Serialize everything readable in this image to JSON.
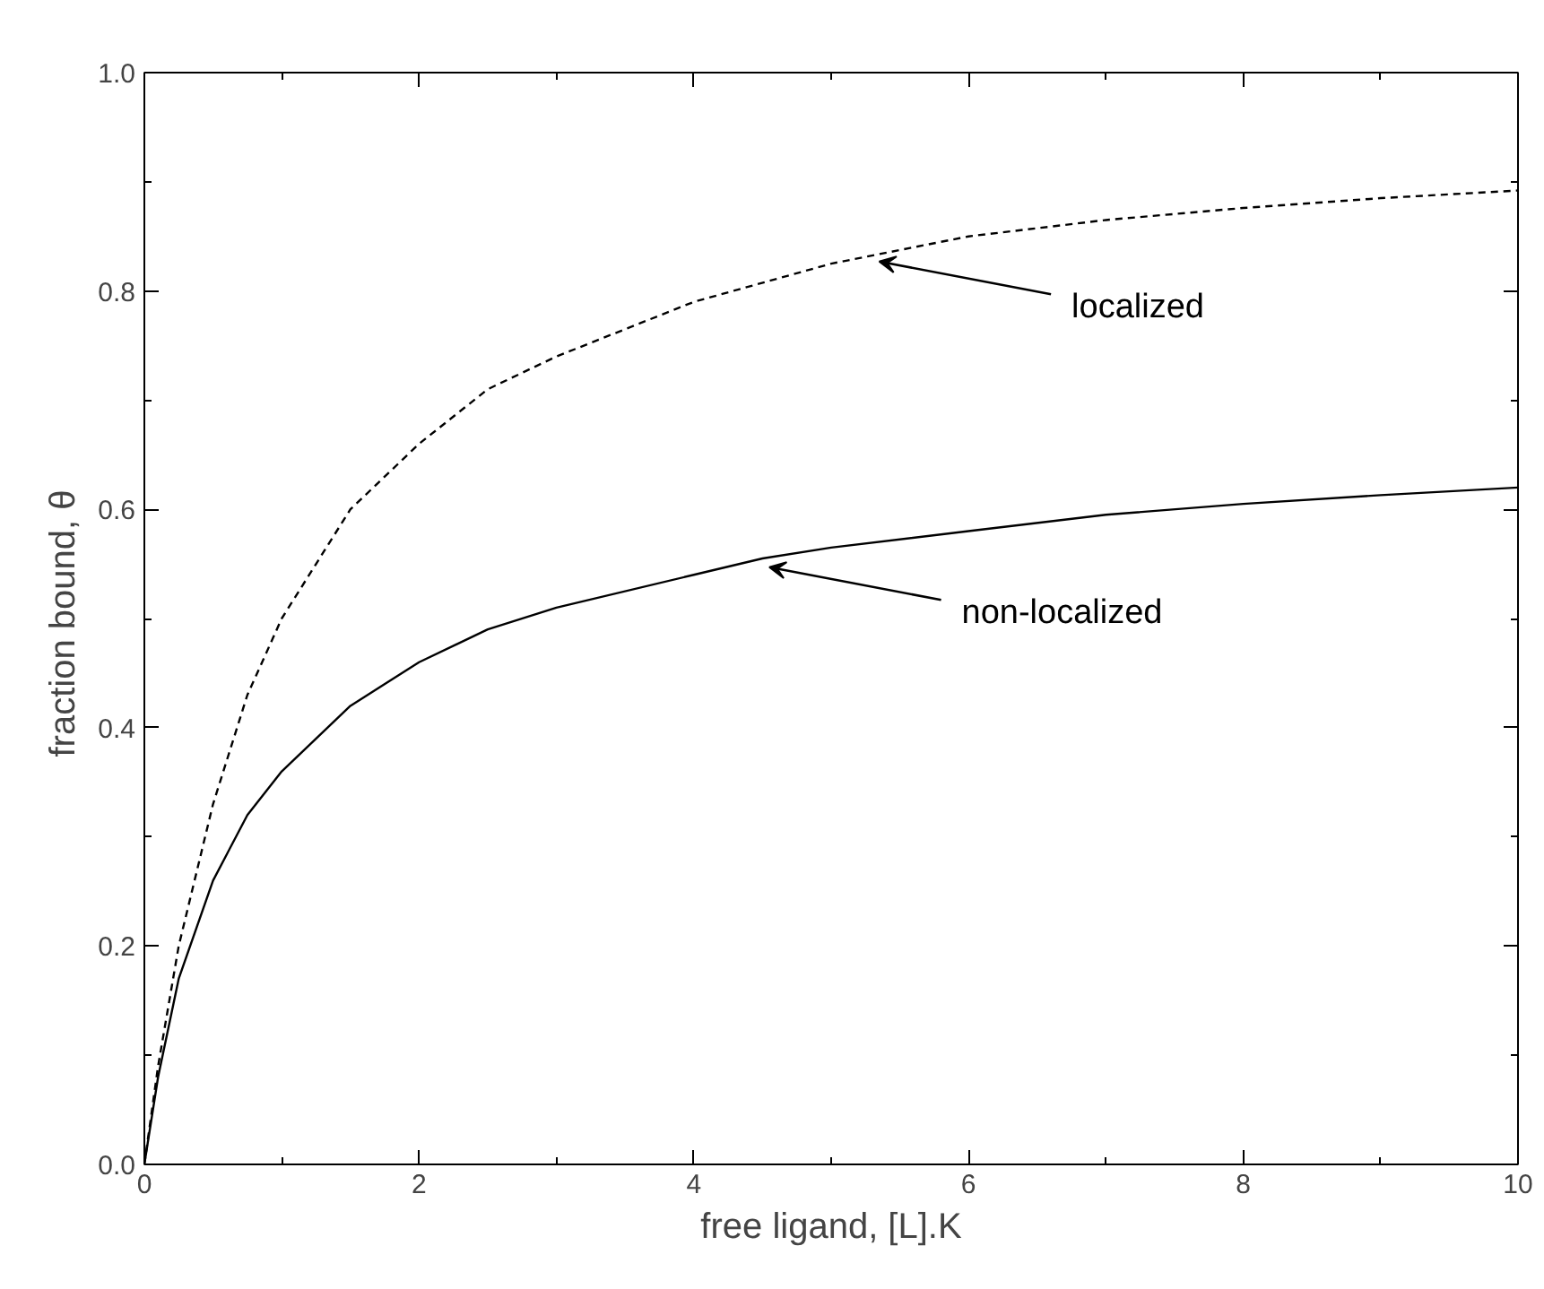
{
  "chart_data": {
    "type": "line",
    "xlabel": "free ligand, [L].K",
    "ylabel": "fraction bound,  θ",
    "xlim": [
      0,
      10
    ],
    "ylim": [
      0,
      1
    ],
    "xticks": [
      0,
      2,
      4,
      6,
      8,
      10
    ],
    "yticks": [
      {
        "value": 0,
        "label": "0.0"
      },
      {
        "value": 0.2,
        "label": "0.2"
      },
      {
        "value": 0.4,
        "label": "0.4"
      },
      {
        "value": 0.6,
        "label": "0.6"
      },
      {
        "value": 0.8,
        "label": "0.8"
      },
      {
        "value": 1,
        "label": "1.0"
      }
    ],
    "grid": false,
    "marker": "none",
    "series": [
      {
        "color": "#000000",
        "line_style": "dashed",
        "x": [
          0,
          0.1,
          0.25,
          0.5,
          0.75,
          1,
          1.5,
          2,
          2.5,
          3,
          4,
          5,
          6,
          7,
          8,
          9,
          10
        ],
        "values": [
          0,
          0.09,
          0.2,
          0.33,
          0.43,
          0.5,
          0.6,
          0.66,
          0.71,
          0.74,
          0.79,
          0.825,
          0.85,
          0.865,
          0.876,
          0.885,
          0.892
        ]
      },
      {
        "color": "#000000",
        "line_style": "solid",
        "x": [
          0,
          0.1,
          0.25,
          0.5,
          0.75,
          1,
          1.5,
          2,
          2.5,
          3,
          4,
          4.5,
          5,
          6,
          7,
          8,
          9,
          10
        ],
        "values": [
          0,
          0.08,
          0.17,
          0.26,
          0.32,
          0.36,
          0.42,
          0.46,
          0.49,
          0.51,
          0.54,
          0.555,
          0.565,
          0.58,
          0.595,
          0.605,
          0.613,
          0.62
        ]
      }
    ],
    "annotations": [
      {
        "text": "localized",
        "x": 5.3,
        "y": 0.83
      },
      {
        "text": "non-localized",
        "x": 4.5,
        "y": 0.55
      }
    ]
  }
}
